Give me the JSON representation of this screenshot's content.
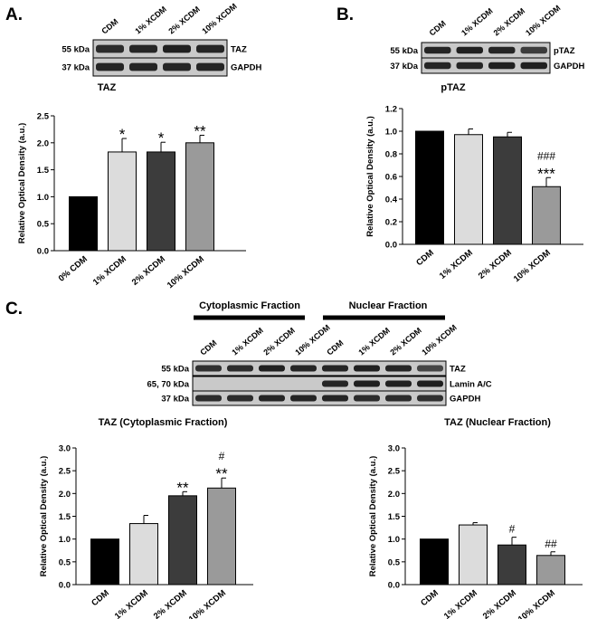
{
  "panels": {
    "A": {
      "letter": "A.",
      "blot": {
        "lanes": [
          "CDM",
          "1% XCDM",
          "2% XCDM",
          "10% XCDM"
        ],
        "rows": [
          {
            "size": "55 kDa",
            "protein": "TAZ",
            "intensity": [
              0.85,
              0.9,
              0.95,
              0.9
            ]
          },
          {
            "size": "37 kDa",
            "protein": "GAPDH",
            "intensity": [
              0.9,
              0.9,
              0.9,
              0.9
            ]
          }
        ]
      }
    },
    "B": {
      "letter": "B.",
      "blot": {
        "lanes": [
          "CDM",
          "1% XCDM",
          "2% XCDM",
          "10% XCDM"
        ],
        "rows": [
          {
            "size": "55 kDa",
            "protein": "pTAZ",
            "intensity": [
              0.9,
              0.95,
              0.9,
              0.7
            ]
          },
          {
            "size": "37 kDa",
            "protein": "GAPDH",
            "intensity": [
              0.9,
              0.9,
              0.95,
              0.95
            ]
          }
        ]
      }
    },
    "C": {
      "letter": "C.",
      "groups": [
        "Cytoplasmic  Fraction",
        "Nuclear Fraction"
      ],
      "blot": {
        "lanes": [
          "CDM",
          "1% XCDM",
          "2% XCDM",
          "10% XCDM",
          "CDM",
          "1% XCDM",
          "2% XCDM",
          "10% XCDM"
        ],
        "rows": [
          {
            "size": "55 kDa",
            "protein": "TAZ",
            "intensity": [
              0.8,
              0.85,
              0.95,
              0.9,
              0.9,
              0.95,
              0.9,
              0.6
            ]
          },
          {
            "size": "65, 70 kDa",
            "protein": "Lamin A/C",
            "intensity": [
              0,
              0,
              0,
              0,
              0.9,
              0.95,
              0.95,
              0.95
            ]
          },
          {
            "size": "37 kDa",
            "protein": "GAPDH",
            "intensity": [
              0.85,
              0.85,
              0.9,
              0.9,
              0.9,
              0.85,
              0.85,
              0.8
            ]
          }
        ]
      }
    }
  },
  "chart_data": [
    {
      "id": "A",
      "type": "bar",
      "title": "TAZ",
      "ylabel": "Relative Optical Density (a.u.)",
      "categories": [
        "0% CDM",
        "1% XCDM",
        "2% XCDM",
        "10% XCDM"
      ],
      "values": [
        1.0,
        1.83,
        1.83,
        2.0
      ],
      "errors": [
        0,
        0.25,
        0.18,
        0.14
      ],
      "annotations": [
        "",
        "*",
        "*",
        "**"
      ],
      "colors": [
        "#000000",
        "#dcdcdc",
        "#3c3c3c",
        "#9a9a9a"
      ],
      "ylim": [
        0,
        2.5
      ],
      "yticks": [
        "0.0",
        "0.5",
        "1.0",
        "1.5",
        "2.0",
        "2.5"
      ]
    },
    {
      "id": "B",
      "type": "bar",
      "title": "pTAZ",
      "ylabel": "Relative Optical Density (a.u.)",
      "categories": [
        "CDM",
        "1% XCDM",
        "2% XCDM",
        "10% XCDM"
      ],
      "values": [
        1.0,
        0.97,
        0.95,
        0.51
      ],
      "errors": [
        0,
        0.05,
        0.04,
        0.08
      ],
      "annotations": [
        "",
        "",
        "",
        "###\n***"
      ],
      "colors": [
        "#000000",
        "#dcdcdc",
        "#3c3c3c",
        "#9a9a9a"
      ],
      "ylim": [
        0,
        1.2
      ],
      "yticks": [
        "0.0",
        "0.2",
        "0.4",
        "0.6",
        "0.8",
        "1.0",
        "1.2"
      ]
    },
    {
      "id": "C1",
      "type": "bar",
      "title": "TAZ (Cytoplasmic Fraction)",
      "ylabel": "Relative Optical Density (a.u.)",
      "categories": [
        "CDM",
        "1% XCDM",
        "2% XCDM",
        "10% XCDM"
      ],
      "values": [
        1.0,
        1.34,
        1.95,
        2.12
      ],
      "errors": [
        0,
        0.18,
        0.09,
        0.22
      ],
      "annotations": [
        "",
        "",
        "**",
        "#\n**"
      ],
      "colors": [
        "#000000",
        "#dcdcdc",
        "#3c3c3c",
        "#9a9a9a"
      ],
      "ylim": [
        0,
        3.0
      ],
      "yticks": [
        "0.0",
        "0.5",
        "1.0",
        "1.5",
        "2.0",
        "2.5",
        "3.0"
      ]
    },
    {
      "id": "C2",
      "type": "bar",
      "title": "TAZ (Nuclear Fraction)",
      "ylabel": "Relative Optical Density (a.u.)",
      "categories": [
        "CDM",
        "1% XCDM",
        "2% XCDM",
        "10% XCDM"
      ],
      "values": [
        1.0,
        1.31,
        0.87,
        0.64
      ],
      "errors": [
        0,
        0.05,
        0.17,
        0.08
      ],
      "annotations": [
        "",
        "",
        "#",
        "##"
      ],
      "colors": [
        "#000000",
        "#dcdcdc",
        "#3c3c3c",
        "#9a9a9a"
      ],
      "ylim": [
        0,
        3.0
      ],
      "yticks": [
        "0.0",
        "0.5",
        "1.0",
        "1.5",
        "2.0",
        "2.5",
        "3.0"
      ]
    }
  ]
}
